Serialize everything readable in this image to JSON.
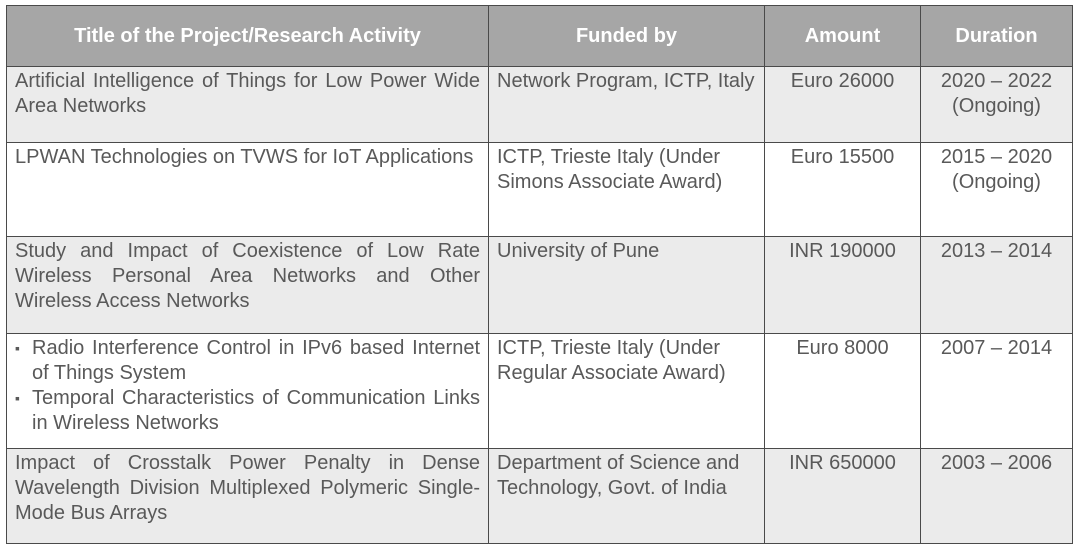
{
  "headers": {
    "title": "Title of the Project/Research Activity",
    "funded_by": "Funded by",
    "amount": "Amount",
    "duration": "Duration"
  },
  "rows": [
    {
      "title": "Artificial Intelligence of Things for Low Power Wide Area Networks",
      "funded_by": "Network Program, ICTP, Italy",
      "amount": "Euro 26000",
      "duration_years": "2020 – 2022",
      "duration_note": "(Ongoing)"
    },
    {
      "title": "LPWAN Technologies on TVWS for IoT Applications",
      "funded_by": "ICTP, Trieste Italy (Under Simons Associate Award)",
      "amount": "Euro 15500",
      "duration_years": "2015 – 2020",
      "duration_note": "(Ongoing)"
    },
    {
      "title": "Study and Impact of Coexistence of Low Rate Wireless Personal Area Networks and Other Wireless Access Networks",
      "funded_by": "University of Pune",
      "amount": "INR 190000",
      "duration_years": "2013 – 2014",
      "duration_note": ""
    },
    {
      "title_items": [
        "Radio Interference Control in IPv6 based Internet of Things System",
        "Temporal Characteristics of Communication Links in Wireless Networks"
      ],
      "bullet": "▪",
      "funded_by": "ICTP, Trieste Italy (Under Regular Associate Award)",
      "amount": "Euro 8000",
      "duration_years": "2007 – 2014",
      "duration_note": ""
    },
    {
      "title": "Impact of Crosstalk Power Penalty in Dense Wavelength Division Multiplexed Polymeric Single-Mode Bus Arrays",
      "funded_by": "Department of Science and Technology, Govt. of India",
      "amount": "INR 650000",
      "duration_years": "2003 – 2006",
      "duration_note": ""
    }
  ],
  "colors": {
    "header_bg": "#a6a6a6",
    "header_text": "#ffffff",
    "row_shaded": "#ebebeb",
    "row_plain": "#ffffff",
    "body_text": "#595959",
    "border": "#4a4a4a"
  }
}
